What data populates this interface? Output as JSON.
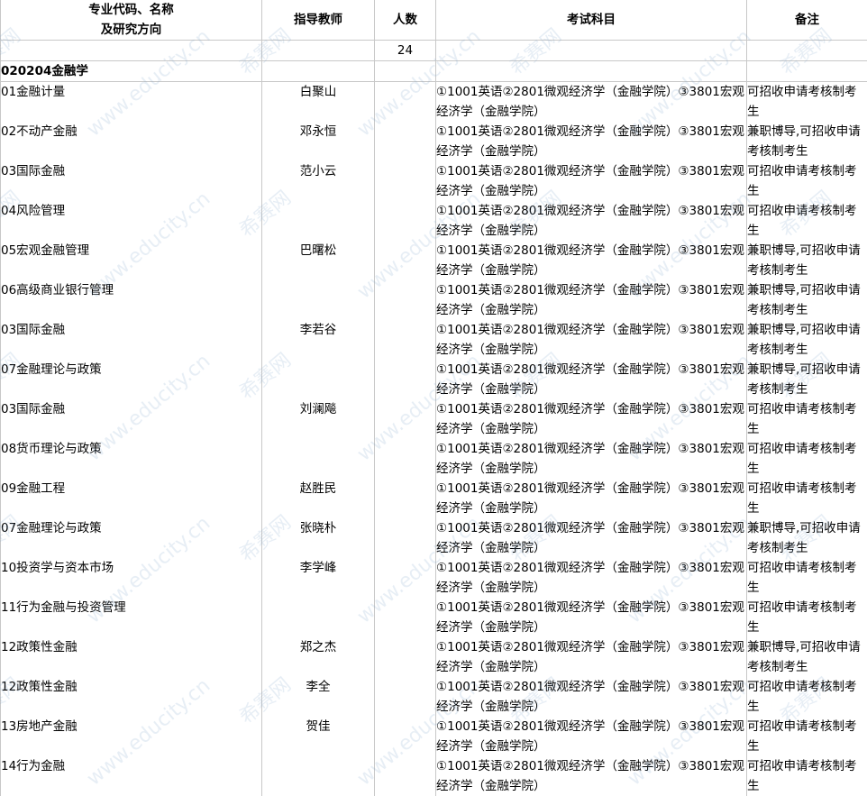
{
  "watermark": {
    "logo": "希赛网",
    "url": "www.educity.cn"
  },
  "header": {
    "major": "专业代码、名称",
    "major2": "及研究方向",
    "advisor": "指导教师",
    "count": "人数",
    "exam": "考试科目",
    "remark": "备注"
  },
  "total_count": "24",
  "section": "020204金融学",
  "exam_text": "①1001英语②2801微观经济学（金融学院）③3801宏观经济学（金融学院）",
  "rows": [
    {
      "direction": "01金融计量",
      "advisor": "白聚山",
      "remark": "可招收申请考核制考生"
    },
    {
      "direction": "02不动产金融",
      "advisor": "邓永恒",
      "remark": "兼职博导,可招收申请考核制考生"
    },
    {
      "direction": "03国际金融",
      "advisor": "范小云",
      "remark": "可招收申请考核制考生"
    },
    {
      "direction": "04风险管理",
      "advisor": "",
      "remark": "可招收申请考核制考生"
    },
    {
      "direction": "05宏观金融管理",
      "advisor": "巴曙松",
      "remark": "兼职博导,可招收申请考核制考生"
    },
    {
      "direction": "06高级商业银行管理",
      "advisor": "",
      "remark": "兼职博导,可招收申请考核制考生"
    },
    {
      "direction": "03国际金融",
      "advisor": "李若谷",
      "remark": "兼职博导,可招收申请考核制考生"
    },
    {
      "direction": "07金融理论与政策",
      "advisor": "",
      "remark": "兼职博导,可招收申请考核制考生"
    },
    {
      "direction": "03国际金融",
      "advisor": "刘澜飚",
      "remark": "可招收申请考核制考生"
    },
    {
      "direction": "08货币理论与政策",
      "advisor": "",
      "remark": "可招收申请考核制考生"
    },
    {
      "direction": "09金融工程",
      "advisor": "赵胜民",
      "remark": "可招收申请考核制考生"
    },
    {
      "direction": "07金融理论与政策",
      "advisor": "张晓朴",
      "remark": "兼职博导,可招收申请考核制考生"
    },
    {
      "direction": "10投资学与资本市场",
      "advisor": "李学峰",
      "remark": "可招收申请考核制考生"
    },
    {
      "direction": "11行为金融与投资管理",
      "advisor": "",
      "remark": "可招收申请考核制考生"
    },
    {
      "direction": "12政策性金融",
      "advisor": "郑之杰",
      "remark": "兼职博导,可招收申请考核制考生"
    },
    {
      "direction": "12政策性金融",
      "advisor": "李全",
      "remark": "可招收申请考核制考生"
    },
    {
      "direction": "13房地产金融",
      "advisor": "贺佳",
      "remark": "可招收申请考核制考生"
    },
    {
      "direction": "14行为金融",
      "advisor": "",
      "remark": "可招收申请考核制考生"
    }
  ]
}
